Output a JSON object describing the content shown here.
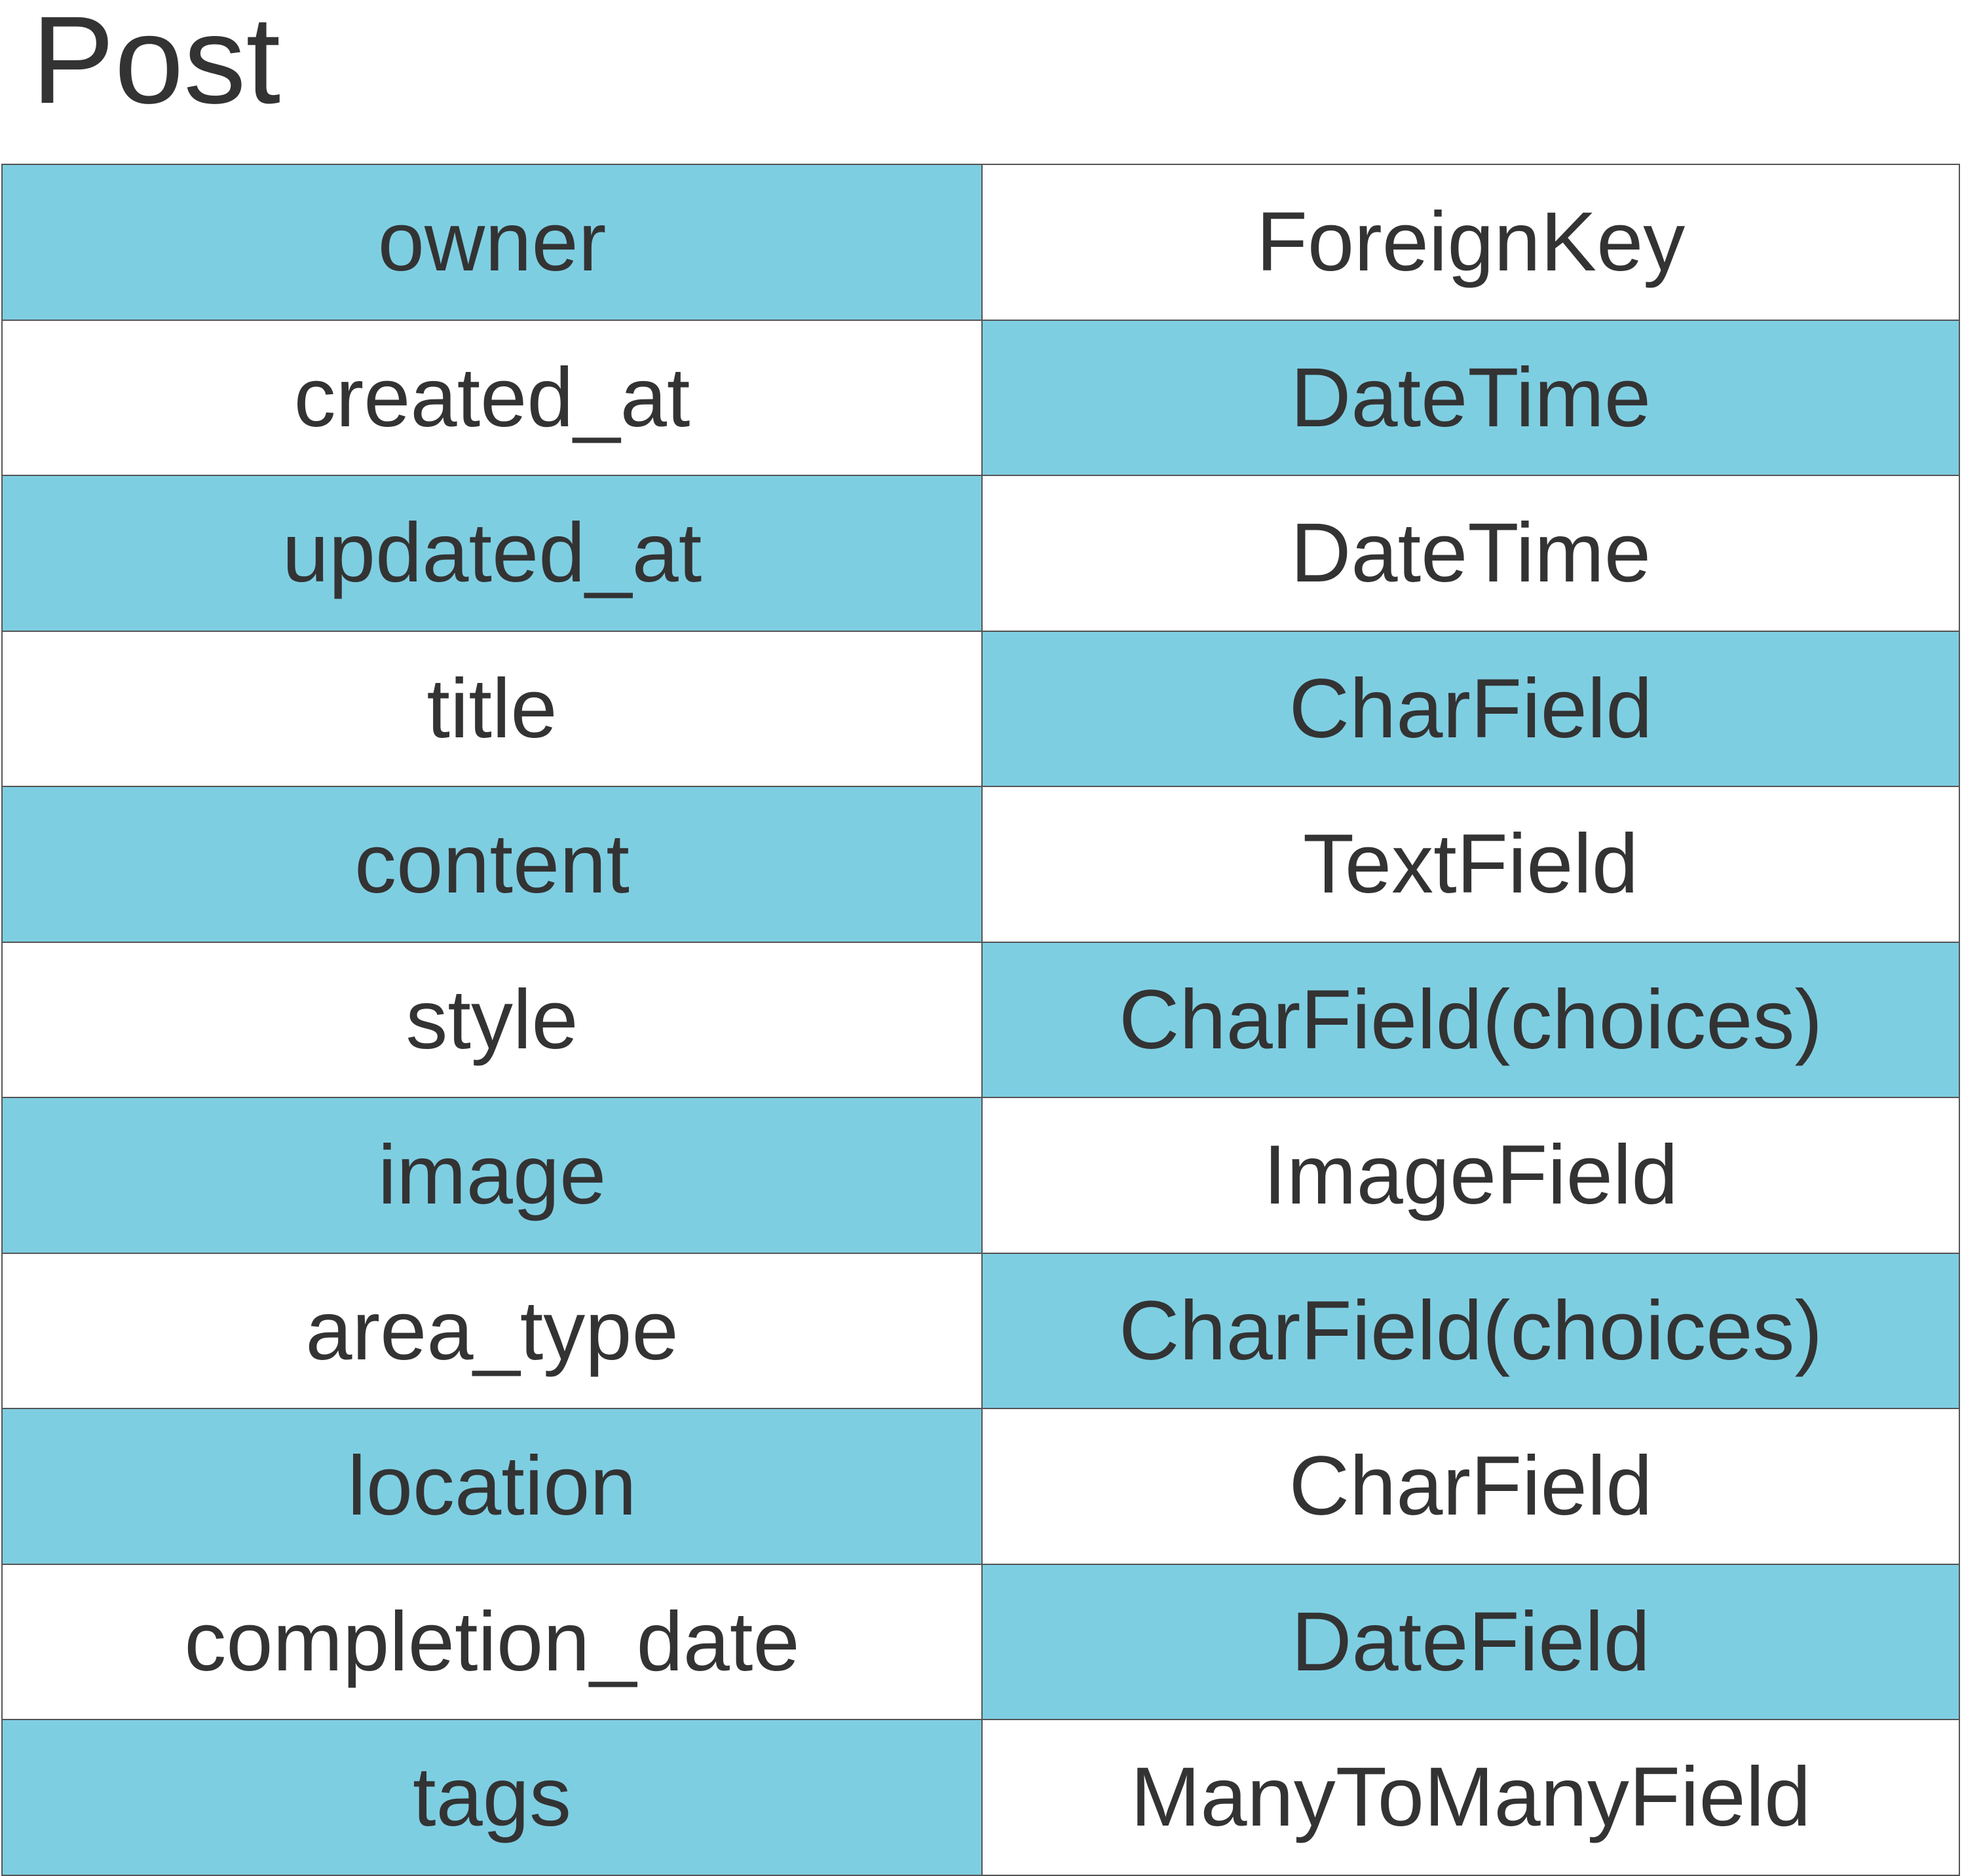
{
  "model": {
    "title": "Post"
  },
  "colors": {
    "highlight": "#7ecee2",
    "plain": "#ffffff",
    "text": "#333333",
    "border": "#555555"
  },
  "fields": [
    {
      "name": "owner",
      "type": "ForeignKey"
    },
    {
      "name": "created_at",
      "type": "DateTime"
    },
    {
      "name": "updated_at",
      "type": "DateTime"
    },
    {
      "name": "title",
      "type": "CharField"
    },
    {
      "name": "content",
      "type": "TextField"
    },
    {
      "name": "style",
      "type": "CharField(choices)"
    },
    {
      "name": "image",
      "type": "ImageField"
    },
    {
      "name": "area_type",
      "type": "CharField(choices)"
    },
    {
      "name": "location",
      "type": "CharField"
    },
    {
      "name": "completion_date",
      "type": "DateField"
    },
    {
      "name": "tags",
      "type": "ManyToManyField"
    }
  ]
}
